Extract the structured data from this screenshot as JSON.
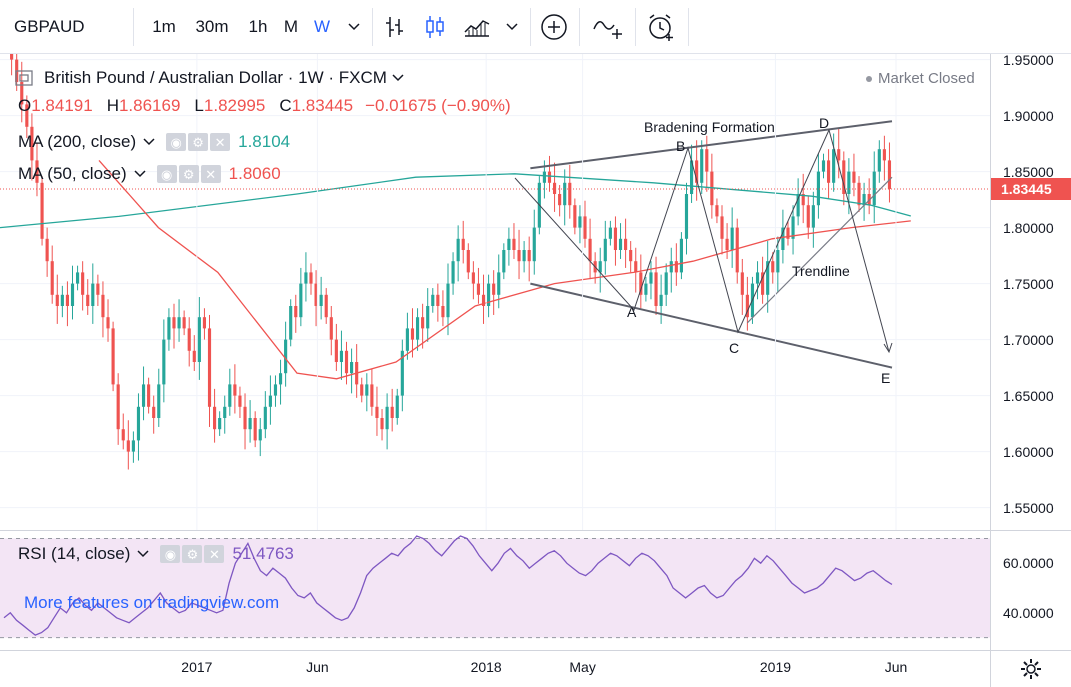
{
  "toolbar": {
    "symbol": "GBPAUD",
    "intervals": [
      "1m",
      "30m",
      "1h",
      "M",
      "W"
    ],
    "active_interval": "W",
    "icons": [
      "bar-style-icon",
      "candle-style-icon",
      "area-style-icon",
      "compare-add-icon",
      "indicators-icon",
      "alert-icon"
    ]
  },
  "legend": {
    "title": "British Pound / Australian Dollar · 1W · FXCM",
    "o_label": "O",
    "o_value": "1.84191",
    "h_label": "H",
    "h_value": "1.86169",
    "l_label": "L",
    "l_value": "1.82995",
    "c_label": "C",
    "c_value": "1.83445",
    "change": "−0.01675 (−0.90%)",
    "market_status": "Market Closed"
  },
  "indicators": {
    "ma200": {
      "label": "MA (200, close)",
      "value": "1.8104",
      "color": "#26a69a"
    },
    "ma50": {
      "label": "MA (50, close)",
      "value": "1.8060",
      "color": "#ef5350"
    },
    "rsi": {
      "label": "RSI (14, close)",
      "value": "51.4763",
      "color": "#7e57c2"
    }
  },
  "watermark": "More features on tradingview.com",
  "price_axis": {
    "ticks": [
      "1.95000",
      "1.90000",
      "1.85000",
      "1.80000",
      "1.75000",
      "1.70000",
      "1.65000",
      "1.60000",
      "1.55000"
    ],
    "last_price": "1.83445"
  },
  "rsi_axis": {
    "ticks": [
      "60.0000",
      "40.0000"
    ]
  },
  "time_axis": {
    "labels": [
      "2017",
      "Jun",
      "2018",
      "May",
      "2019",
      "Jun"
    ]
  },
  "annotations": {
    "pattern": "Bradening Formation",
    "trendline": "Trendline",
    "points": [
      "A",
      "B",
      "C",
      "D",
      "E"
    ]
  },
  "chart_data": {
    "type": "candlestick",
    "symbol": "GBPAUD",
    "timeframe": "1W",
    "x_range": [
      "2016-05",
      "2019-06"
    ],
    "ylim": [
      1.55,
      1.95
    ],
    "up_color": "#26a69a",
    "down_color": "#ef5350",
    "weekly_close": [
      1.97,
      1.95,
      1.93,
      1.91,
      1.89,
      1.86,
      1.84,
      1.79,
      1.77,
      1.74,
      1.73,
      1.74,
      1.73,
      1.75,
      1.76,
      1.74,
      1.73,
      1.75,
      1.74,
      1.72,
      1.71,
      1.66,
      1.62,
      1.61,
      1.6,
      1.61,
      1.64,
      1.66,
      1.64,
      1.63,
      1.66,
      1.7,
      1.72,
      1.71,
      1.72,
      1.71,
      1.69,
      1.68,
      1.72,
      1.71,
      1.64,
      1.62,
      1.63,
      1.64,
      1.66,
      1.65,
      1.64,
      1.62,
      1.63,
      1.61,
      1.62,
      1.64,
      1.65,
      1.66,
      1.67,
      1.7,
      1.73,
      1.72,
      1.75,
      1.76,
      1.75,
      1.73,
      1.74,
      1.72,
      1.7,
      1.68,
      1.69,
      1.67,
      1.68,
      1.66,
      1.65,
      1.66,
      1.64,
      1.63,
      1.62,
      1.64,
      1.63,
      1.65,
      1.69,
      1.71,
      1.7,
      1.72,
      1.71,
      1.73,
      1.74,
      1.73,
      1.72,
      1.75,
      1.77,
      1.79,
      1.78,
      1.76,
      1.75,
      1.74,
      1.73,
      1.75,
      1.74,
      1.76,
      1.78,
      1.79,
      1.78,
      1.77,
      1.78,
      1.77,
      1.8,
      1.84,
      1.85,
      1.84,
      1.83,
      1.82,
      1.84,
      1.82,
      1.8,
      1.81,
      1.79,
      1.77,
      1.76,
      1.77,
      1.79,
      1.8,
      1.78,
      1.79,
      1.78,
      1.77,
      1.76,
      1.74,
      1.75,
      1.76,
      1.73,
      1.74,
      1.76,
      1.77,
      1.76,
      1.79,
      1.83,
      1.86,
      1.84,
      1.87,
      1.85,
      1.82,
      1.81,
      1.79,
      1.78,
      1.8,
      1.76,
      1.74,
      1.72,
      1.75,
      1.76,
      1.74,
      1.77,
      1.76,
      1.78,
      1.8,
      1.79,
      1.81,
      1.83,
      1.82,
      1.8,
      1.82,
      1.85,
      1.86,
      1.84,
      1.87,
      1.86,
      1.83,
      1.85,
      1.84,
      1.82,
      1.83,
      1.82,
      1.85,
      1.87,
      1.86,
      1.83445
    ],
    "ma200_curve": [
      [
        0,
        1.8
      ],
      [
        0.12,
        1.81
      ],
      [
        0.3,
        1.83
      ],
      [
        0.42,
        1.845
      ],
      [
        0.52,
        1.848
      ],
      [
        0.66,
        1.84
      ],
      [
        0.82,
        1.828
      ],
      [
        0.88,
        1.82
      ],
      [
        0.92,
        1.8104
      ]
    ],
    "ma50_curve": [
      [
        0.1,
        1.86
      ],
      [
        0.16,
        1.8
      ],
      [
        0.22,
        1.76
      ],
      [
        0.3,
        1.67
      ],
      [
        0.34,
        1.665
      ],
      [
        0.4,
        1.68
      ],
      [
        0.48,
        1.73
      ],
      [
        0.56,
        1.75
      ],
      [
        0.64,
        1.76
      ],
      [
        0.7,
        1.77
      ],
      [
        0.78,
        1.79
      ],
      [
        0.86,
        1.8
      ],
      [
        0.92,
        1.806
      ]
    ],
    "drawings": [
      {
        "type": "trendline",
        "label": "upper",
        "points": [
          [
            "2018-03",
            1.853
          ],
          [
            "2019-06",
            1.895
          ]
        ]
      },
      {
        "type": "trendline",
        "label": "lower",
        "points": [
          [
            "2018-03",
            1.75
          ],
          [
            "2019-06",
            1.675
          ]
        ]
      },
      {
        "type": "trendline",
        "label": "Trendline",
        "points": [
          [
            "2018-12",
            1.715
          ],
          [
            "2019-06",
            1.845
          ]
        ]
      }
    ],
    "rsi": {
      "ylim": [
        30,
        70
      ],
      "overbought": 70,
      "oversold": 30,
      "values": [
        38,
        40,
        37,
        35,
        33,
        31,
        32,
        34,
        38,
        42,
        40,
        44,
        46,
        43,
        41,
        44,
        42,
        40,
        38,
        37,
        36,
        38,
        40,
        42,
        45,
        48,
        44,
        42,
        40,
        41,
        44,
        43,
        42,
        41,
        40,
        41,
        52,
        60,
        64,
        68,
        62,
        57,
        55,
        58,
        56,
        54,
        50,
        47,
        46,
        48,
        44,
        42,
        40,
        38,
        37,
        38,
        42,
        48,
        55,
        58,
        60,
        62,
        64,
        63,
        66,
        68,
        71,
        70,
        68,
        65,
        63,
        66,
        69,
        71,
        70,
        67,
        63,
        60,
        57,
        60,
        64,
        66,
        63,
        61,
        58,
        60,
        62,
        64,
        65,
        63,
        60,
        58,
        56,
        55,
        57,
        60,
        62,
        64,
        63,
        61,
        59,
        62,
        64,
        63,
        61,
        58,
        55,
        50,
        48,
        46,
        48,
        50,
        51,
        48,
        46,
        47,
        50,
        53,
        55,
        58,
        62,
        60,
        63,
        61,
        58,
        55,
        52,
        50,
        48,
        49,
        50,
        52,
        55,
        58,
        57,
        55,
        53,
        54,
        56,
        57,
        55,
        53,
        51.4763
      ]
    }
  }
}
